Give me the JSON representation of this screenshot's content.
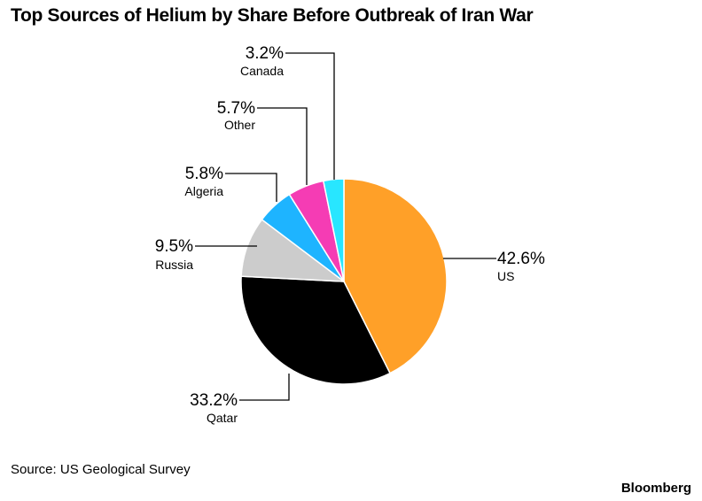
{
  "chart_data": {
    "type": "pie",
    "title": "Top Sources of Helium by Share Before Outbreak of Iran War",
    "unit": "%",
    "slices": [
      {
        "name": "US",
        "value": 42.6,
        "label": "42.6%",
        "color": "#FFA028"
      },
      {
        "name": "Qatar",
        "value": 33.2,
        "label": "33.2%",
        "color": "#000000"
      },
      {
        "name": "Russia",
        "value": 9.5,
        "label": "9.5%",
        "color": "#CCCCCC"
      },
      {
        "name": "Algeria",
        "value": 5.8,
        "label": "5.8%",
        "color": "#1EB4FF"
      },
      {
        "name": "Other",
        "value": 5.7,
        "label": "5.7%",
        "color": "#F53CB4"
      },
      {
        "name": "Canada",
        "value": 3.2,
        "label": "3.2%",
        "color": "#28E6FF"
      }
    ]
  },
  "footer": {
    "source": "Source: US Geological Survey",
    "brand": "Bloomberg"
  }
}
